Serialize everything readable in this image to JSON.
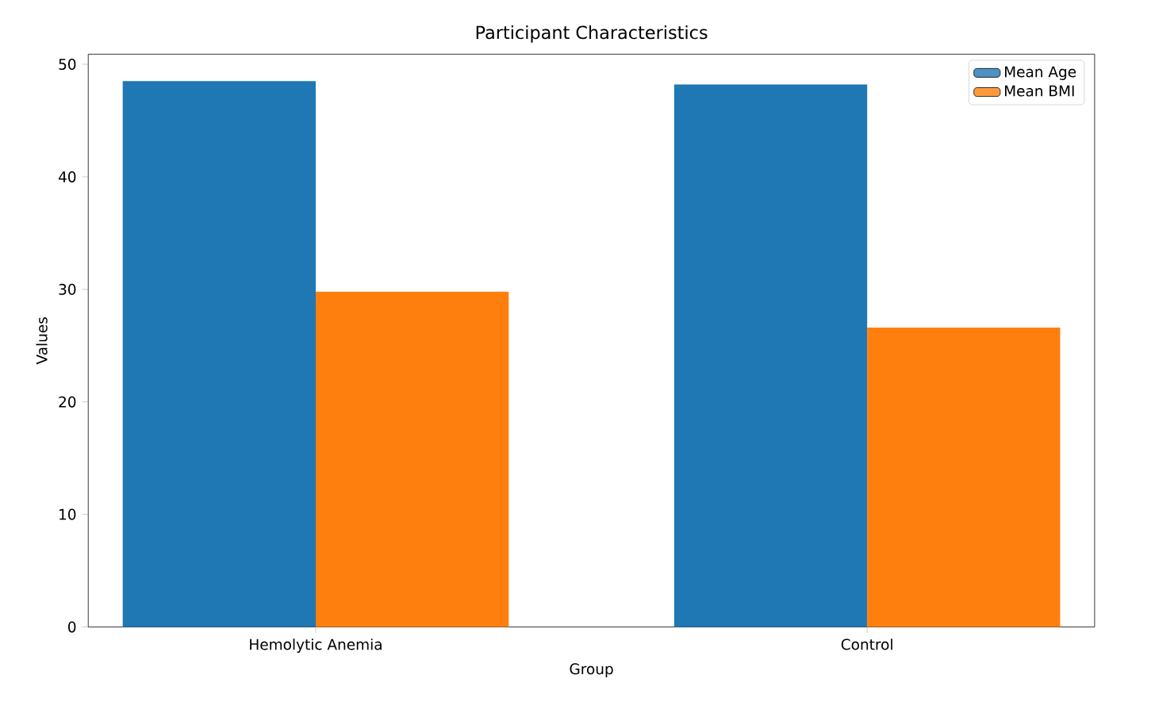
{
  "chart_data": {
    "type": "bar",
    "title": "Participant Characteristics",
    "xlabel": "Group",
    "ylabel": "Values",
    "categories": [
      "Hemolytic Anemia",
      "Control"
    ],
    "series": [
      {
        "name": "Mean Age",
        "color": "#1f77b4",
        "values": [
          48.5,
          48.2
        ]
      },
      {
        "name": "Mean BMI",
        "color": "#ff7f0e",
        "values": [
          29.8,
          26.6
        ]
      }
    ],
    "ylim": [
      0,
      50.9
    ],
    "yticks": [
      0,
      10,
      20,
      30,
      40,
      50
    ],
    "legend": "top right",
    "grid": false
  }
}
